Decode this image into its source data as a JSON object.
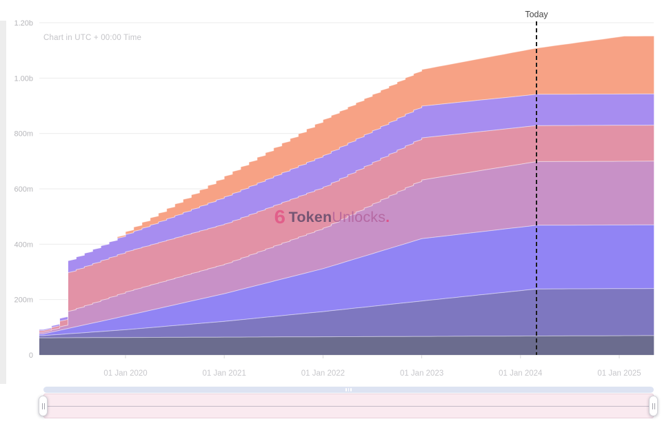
{
  "header": {
    "utc_note": "Chart in UTC + 00:00 Time"
  },
  "watermark": {
    "icon_glyph": "6",
    "token": "Token",
    "unlocks": "Unlocks",
    "dot": ".",
    "icon_color": "#e2487e",
    "token_color": "#43395c",
    "unlocks_color": "#b05e98"
  },
  "chart_data": {
    "type": "area",
    "stacked": true,
    "note": "Chart in UTC + 00:00 Time",
    "x_range": [
      2019.127,
      2025.351
    ],
    "y_axis": {
      "unit": "token amount (m = millions, b = billions)",
      "range": [
        0,
        1200
      ],
      "ticks": [
        {
          "v": 0,
          "label": "0"
        },
        {
          "v": 200,
          "label": "200m"
        },
        {
          "v": 400,
          "label": "400m"
        },
        {
          "v": 600,
          "label": "600m"
        },
        {
          "v": 800,
          "label": "800m"
        },
        {
          "v": 1000,
          "label": "1.00b"
        },
        {
          "v": 1200,
          "label": "1.20b"
        }
      ]
    },
    "x_axis": {
      "ticks": [
        {
          "t": 2020,
          "label": "01 Jan 2020"
        },
        {
          "t": 2021,
          "label": "01 Jan 2021"
        },
        {
          "t": 2022,
          "label": "01 Jan 2022"
        },
        {
          "t": 2023,
          "label": "01 Jan 2023"
        },
        {
          "t": 2024,
          "label": "01 Jan 2024"
        },
        {
          "t": 2025,
          "label": "01 Jan 2025"
        }
      ]
    },
    "today": {
      "t": 2024.162,
      "label": "Today",
      "line_color": "#1c1c1c"
    },
    "style": {
      "gridline_color": "#ebebeb",
      "axis_line_color": "#dedede",
      "tick_color": "#d9d9d9",
      "y_label_color": "#b6b6ba",
      "x_label_color": "#c7c7cb",
      "band_boundary_color": "rgba(255,255,255,0.55)"
    },
    "series_note": "values in millions of tokens; widths of stacked bands at keyframe times [year, value]; bands listed bottom to top",
    "series": [
      {
        "name": "slate-navy",
        "color": "#6b6c8e",
        "step": false,
        "keyframes": [
          [
            2019.167,
            62
          ],
          [
            2025.351,
            70
          ]
        ]
      },
      {
        "name": "dark-periwinkle",
        "color": "#7e77c0",
        "step": false,
        "keyframes": [
          [
            2019.167,
            8
          ],
          [
            2020,
            28
          ],
          [
            2021,
            57
          ],
          [
            2022,
            91
          ],
          [
            2023,
            128
          ],
          [
            2024.162,
            170
          ],
          [
            2025.351,
            170
          ]
        ]
      },
      {
        "name": "periwinkle",
        "color": "#9184f4",
        "step": false,
        "keyframes": [
          [
            2019.167,
            6
          ],
          [
            2020,
            50
          ],
          [
            2021,
            100
          ],
          [
            2022,
            155
          ],
          [
            2023,
            225
          ],
          [
            2024.162,
            230
          ],
          [
            2025.351,
            230
          ]
        ]
      },
      {
        "name": "orchid",
        "color": "#c891c7",
        "step": true,
        "step_until": 2023.0,
        "keyframes": [
          [
            2019.167,
            6
          ],
          [
            2019.33,
            9
          ],
          [
            2019.38,
            60
          ],
          [
            2020,
            86
          ],
          [
            2021,
            106
          ],
          [
            2022,
            146
          ],
          [
            2023,
            212
          ],
          [
            2024.162,
            230
          ],
          [
            2025.351,
            230
          ]
        ]
      },
      {
        "name": "rose",
        "color": "#e292a6",
        "step": true,
        "step_until": 2023.0,
        "keyframes": [
          [
            2019.167,
            6
          ],
          [
            2019.33,
            12
          ],
          [
            2019.38,
            140
          ],
          [
            2020,
            145
          ],
          [
            2021,
            145
          ],
          [
            2022,
            148
          ],
          [
            2023,
            152
          ],
          [
            2024.162,
            130
          ],
          [
            2025.351,
            130
          ]
        ]
      },
      {
        "name": "lavender-purple",
        "color": "#a78df0",
        "step": true,
        "step_until": 2023.0,
        "keyframes": [
          [
            2019.167,
            4
          ],
          [
            2019.33,
            8
          ],
          [
            2019.38,
            42
          ],
          [
            2020,
            63
          ],
          [
            2021,
            98
          ],
          [
            2022,
            114
          ],
          [
            2023,
            115
          ],
          [
            2024.162,
            113
          ],
          [
            2025.351,
            113
          ]
        ]
      },
      {
        "name": "salmon",
        "color": "#f7a285",
        "step": true,
        "step_until": 2022.7,
        "keyframes": [
          [
            2019.83,
            0
          ],
          [
            2020,
            10
          ],
          [
            2021,
            75
          ],
          [
            2022,
            130
          ],
          [
            2023,
            132
          ],
          [
            2024.162,
            167
          ],
          [
            2025.05,
            209
          ],
          [
            2025.351,
            209
          ]
        ]
      }
    ]
  },
  "slider": {
    "bar_grip_icon": "grip-dots-icon",
    "left_handle_icon": "drag-handle-icon",
    "right_handle_icon": "drag-handle-icon"
  }
}
